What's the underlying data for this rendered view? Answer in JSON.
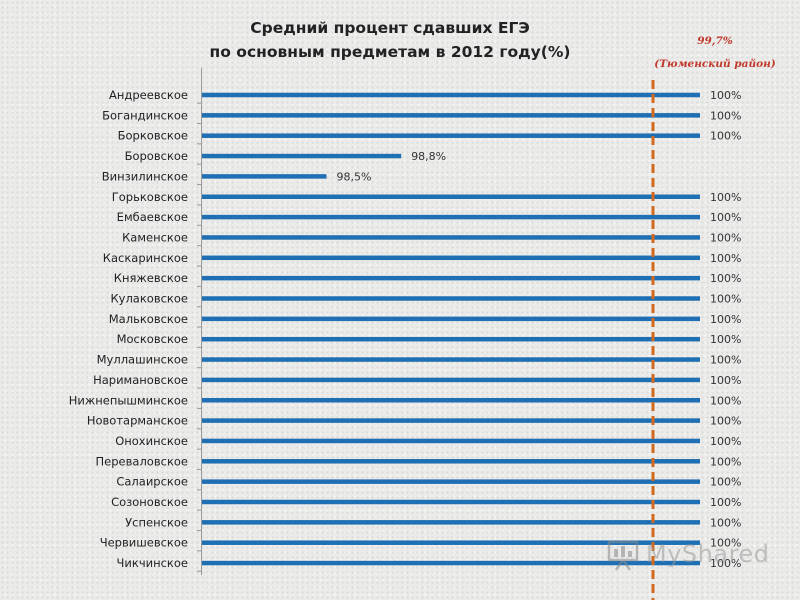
{
  "chart_data": {
    "type": "bar",
    "orientation": "horizontal",
    "title": [
      "Средний процент сдавших ЕГЭ",
      "по основным предметам в 2012 году(%)"
    ],
    "categories": [
      "Андреевское",
      "Богандинское",
      "Борковское",
      "Боровское",
      "Винзилинское",
      "Горьковское",
      "Ембаевское",
      "Каменское",
      "Каскаринское",
      "Княжевское",
      "Кулаковское",
      "Мальковское",
      "Московское",
      "Муллашинское",
      "Наримановское",
      "Нижнепышминское",
      "Новотарманское",
      "Онохинское",
      "Перевaловское",
      "Салаирское",
      "Созоновское",
      "Успенское",
      "Червишевское",
      "Чикчинское"
    ],
    "values": [
      100,
      100,
      100,
      98.8,
      98.5,
      100,
      100,
      100,
      100,
      100,
      100,
      100,
      100,
      100,
      100,
      100,
      100,
      100,
      100,
      100,
      100,
      100,
      100,
      100
    ],
    "data_labels": [
      "100%",
      "100%",
      "100%",
      "98,8%",
      "98,5%",
      "100%",
      "100%",
      "100%",
      "100%",
      "100%",
      "100%",
      "100%",
      "100%",
      "100%",
      "100%",
      "100%",
      "100%",
      "100%",
      "100%",
      "100%",
      "100%",
      "100%",
      "100%",
      "100%"
    ],
    "xlim": [
      98,
      100
    ],
    "bar_color": "#1f6fb4",
    "reference_line": {
      "value": 99.7,
      "label": "99,7%",
      "sublabel": "(Тюменский район)",
      "color": "#d2691e",
      "label_color": "#c0392b",
      "style": "dashed"
    },
    "grid": false
  },
  "watermark": {
    "text": "MyShared"
  }
}
